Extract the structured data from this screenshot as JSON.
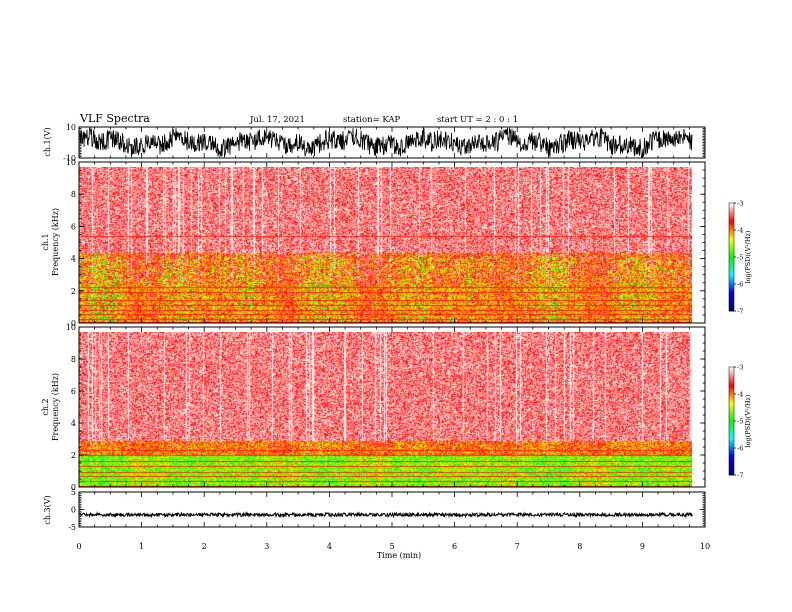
{
  "header": {
    "title": "VLF Spectra",
    "date": "Jul. 17, 2021",
    "station": "station= KAP",
    "start": "start UT =  2 : 0 : 1"
  },
  "colors": {
    "background": "#ffffff",
    "frame": "#000000",
    "waveform": "#000000",
    "colormap": [
      "#00007f",
      "#0000ff",
      "#00ffff",
      "#00ff00",
      "#ffff00",
      "#ff0000",
      "#ffffff"
    ]
  },
  "chart_data": [
    {
      "type": "line",
      "id": "ch1-waveform",
      "ylabel": "ch.1(V)",
      "ylim": [
        -10,
        10
      ],
      "yticks": [
        {
          "v": 10,
          "label": "10"
        },
        {
          "v": -10,
          "label": "-10"
        }
      ],
      "xlim": [
        0,
        10
      ],
      "description_of_series": "continuous noisy waveform, roughly -8 to 9 V"
    },
    {
      "type": "heatmap",
      "id": "ch1-spectrogram",
      "ylabel": "ch.1\nFrequency (kHz)",
      "ylabel_line1": "ch.1",
      "ylabel_line2": "Frequency (kHz)",
      "ylim": [
        0,
        10
      ],
      "yticks": [
        0,
        2,
        4,
        6,
        8,
        10
      ],
      "xlim": [
        0,
        10
      ],
      "data_extent_min": 9.8,
      "colorbar": {
        "label": "log(PSD)(V²/Hz)",
        "range": [
          -7,
          -3
        ],
        "ticks": [
          -3,
          -4,
          -5,
          -6,
          -7
        ]
      }
    },
    {
      "type": "heatmap",
      "id": "ch2-spectrogram",
      "ylabel_line1": "ch.2",
      "ylabel_line2": "Frequency (kHz)",
      "ylim": [
        0,
        10
      ],
      "yticks": [
        0,
        2,
        4,
        6,
        8,
        10
      ],
      "xlim": [
        0,
        10
      ],
      "data_extent_min": 9.8,
      "colorbar": {
        "label": "log(PSD)(V²/Hz)",
        "range": [
          -7,
          -3
        ],
        "ticks": [
          -3,
          -4,
          -5,
          -6,
          -7
        ]
      }
    },
    {
      "type": "line",
      "id": "ch3-waveform",
      "ylabel": "ch.3(V)",
      "ylim": [
        -5,
        5
      ],
      "yticks": [
        {
          "v": 5,
          "label": "5"
        },
        {
          "v": 0,
          "label": "0"
        },
        {
          "v": -5,
          "label": "-5"
        }
      ],
      "xlim": [
        0,
        10
      ],
      "xlabel": "Time (min)",
      "xticks": [
        0,
        1,
        2,
        3,
        4,
        5,
        6,
        7,
        8,
        9,
        10
      ],
      "description_of_series": "dense band centred near -1.5 V"
    }
  ]
}
